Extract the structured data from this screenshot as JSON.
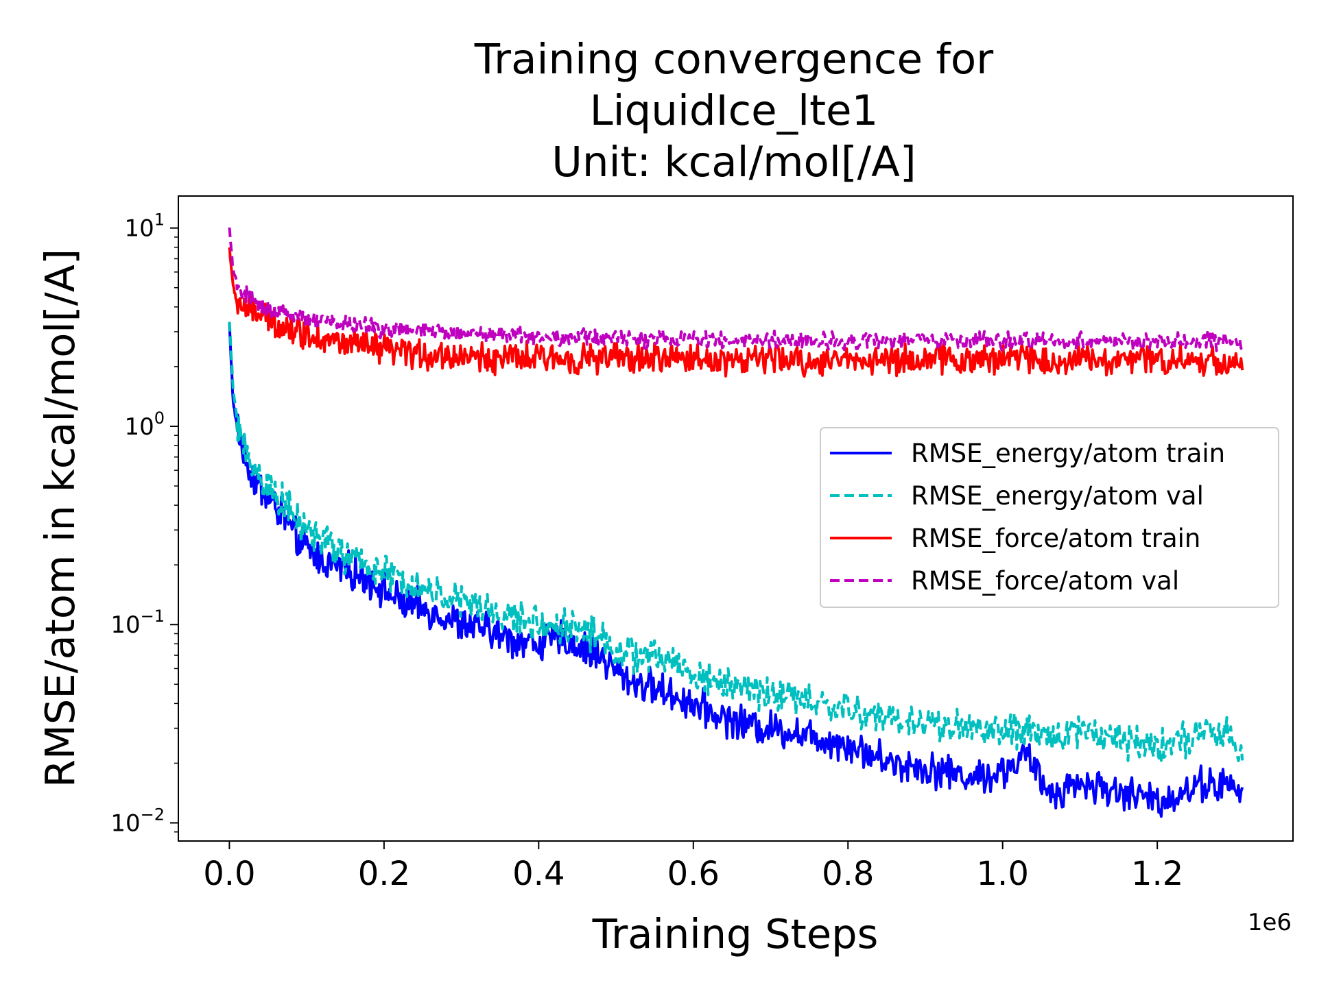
{
  "chart_data": {
    "type": "line",
    "title": [
      "Training convergence for",
      "LiquidIce_lte1",
      "Unit: kcal/mol[/A]"
    ],
    "xlabel": "Training Steps",
    "ylabel": "RMSE/atom in kcal/mol[/A]",
    "x_offset_label": "1e6",
    "xscale": "linear",
    "yscale": "log",
    "xlim": [
      -0.066,
      1.3755
    ],
    "ylim": [
      0.0081,
      14.5
    ],
    "x_unit_multiplier": 1000000,
    "xticks": [
      {
        "value": 0.0,
        "label": "0.0"
      },
      {
        "value": 0.2,
        "label": "0.2"
      },
      {
        "value": 0.4,
        "label": "0.4"
      },
      {
        "value": 0.6,
        "label": "0.6"
      },
      {
        "value": 0.8,
        "label": "0.8"
      },
      {
        "value": 1.0,
        "label": "1.0"
      },
      {
        "value": 1.2,
        "label": "1.2"
      }
    ],
    "yticks": [
      {
        "value": 0.01,
        "base": "10",
        "exp": "−2"
      },
      {
        "value": 0.1,
        "base": "10",
        "exp": "−1"
      },
      {
        "value": 1,
        "base": "10",
        "exp": "0"
      },
      {
        "value": 10,
        "base": "10",
        "exp": "1"
      }
    ],
    "grid": false,
    "legend_position": "center-right",
    "series": [
      {
        "name": "RMSE_energy/atom train",
        "color": "#0000ff",
        "dash": "solid",
        "x": [
          0,
          0.005,
          0.01,
          0.02,
          0.03,
          0.05,
          0.07,
          0.09,
          0.12,
          0.15,
          0.18,
          0.2,
          0.22,
          0.25,
          0.28,
          0.3,
          0.33,
          0.36,
          0.4,
          0.43,
          0.46,
          0.48,
          0.5,
          0.52,
          0.55,
          0.58,
          0.6,
          0.63,
          0.66,
          0.7,
          0.73,
          0.76,
          0.8,
          0.83,
          0.86,
          0.9,
          0.93,
          0.96,
          1.0,
          1.03,
          1.06,
          1.1,
          1.13,
          1.16,
          1.2,
          1.23,
          1.26,
          1.3,
          1.31
        ],
        "values": [
          3.3,
          1.3,
          1.0,
          0.7,
          0.55,
          0.44,
          0.35,
          0.26,
          0.21,
          0.19,
          0.17,
          0.15,
          0.13,
          0.12,
          0.11,
          0.1,
          0.095,
          0.085,
          0.08,
          0.085,
          0.075,
          0.07,
          0.058,
          0.052,
          0.048,
          0.043,
          0.04,
          0.035,
          0.032,
          0.03,
          0.029,
          0.027,
          0.025,
          0.022,
          0.02,
          0.019,
          0.018,
          0.017,
          0.018,
          0.022,
          0.014,
          0.016,
          0.015,
          0.014,
          0.013,
          0.014,
          0.016,
          0.015,
          0.0135
        ]
      },
      {
        "name": "RMSE_energy/atom val",
        "color": "#00bfbf",
        "dash": "dashed",
        "x": [
          0,
          0.005,
          0.01,
          0.02,
          0.03,
          0.05,
          0.07,
          0.09,
          0.12,
          0.15,
          0.18,
          0.2,
          0.22,
          0.25,
          0.28,
          0.3,
          0.33,
          0.36,
          0.4,
          0.43,
          0.46,
          0.48,
          0.5,
          0.52,
          0.55,
          0.58,
          0.6,
          0.63,
          0.66,
          0.7,
          0.73,
          0.76,
          0.8,
          0.83,
          0.86,
          0.9,
          0.93,
          0.96,
          1.0,
          1.03,
          1.06,
          1.1,
          1.13,
          1.16,
          1.2,
          1.23,
          1.26,
          1.3,
          1.31
        ],
        "values": [
          3.4,
          1.5,
          1.1,
          0.75,
          0.62,
          0.5,
          0.42,
          0.32,
          0.27,
          0.22,
          0.2,
          0.18,
          0.17,
          0.15,
          0.14,
          0.13,
          0.12,
          0.11,
          0.1,
          0.1,
          0.095,
          0.085,
          0.075,
          0.07,
          0.068,
          0.065,
          0.055,
          0.052,
          0.048,
          0.045,
          0.043,
          0.04,
          0.037,
          0.035,
          0.033,
          0.032,
          0.031,
          0.03,
          0.029,
          0.028,
          0.027,
          0.03,
          0.028,
          0.026,
          0.025,
          0.026,
          0.028,
          0.027,
          0.02
        ]
      },
      {
        "name": "RMSE_force/atom train",
        "color": "#ff0000",
        "dash": "solid",
        "x": [
          0,
          0.005,
          0.01,
          0.02,
          0.03,
          0.05,
          0.07,
          0.09,
          0.12,
          0.15,
          0.18,
          0.2,
          0.25,
          0.3,
          0.35,
          0.4,
          0.45,
          0.5,
          0.55,
          0.6,
          0.65,
          0.7,
          0.75,
          0.8,
          0.85,
          0.9,
          0.95,
          1.0,
          1.03,
          1.06,
          1.1,
          1.15,
          1.2,
          1.25,
          1.3,
          1.31
        ],
        "values": [
          8.0,
          5.0,
          4.2,
          4.0,
          3.8,
          3.5,
          3.2,
          3.0,
          2.8,
          2.6,
          2.5,
          2.4,
          2.3,
          2.25,
          2.2,
          2.2,
          2.2,
          2.2,
          2.2,
          2.2,
          2.15,
          2.2,
          2.1,
          2.2,
          2.15,
          2.2,
          2.15,
          2.2,
          2.3,
          2.1,
          2.2,
          2.15,
          2.2,
          2.15,
          2.1,
          2.0
        ]
      },
      {
        "name": "RMSE_force/atom val",
        "color": "#bf00bf",
        "dash": "dashed",
        "x": [
          0,
          0.005,
          0.01,
          0.02,
          0.03,
          0.05,
          0.07,
          0.09,
          0.12,
          0.15,
          0.18,
          0.2,
          0.25,
          0.3,
          0.35,
          0.4,
          0.45,
          0.5,
          0.55,
          0.6,
          0.65,
          0.7,
          0.75,
          0.8,
          0.85,
          0.9,
          0.95,
          1.0,
          1.05,
          1.1,
          1.15,
          1.2,
          1.25,
          1.3,
          1.31
        ],
        "values": [
          10.0,
          6.0,
          5.2,
          4.6,
          4.2,
          3.9,
          3.7,
          3.5,
          3.4,
          3.3,
          3.2,
          3.1,
          3.0,
          2.95,
          2.9,
          2.85,
          2.8,
          2.8,
          2.75,
          2.75,
          2.7,
          2.7,
          2.7,
          2.7,
          2.7,
          2.7,
          2.7,
          2.7,
          2.7,
          2.7,
          2.7,
          2.65,
          2.65,
          2.7,
          2.6
        ]
      }
    ]
  }
}
